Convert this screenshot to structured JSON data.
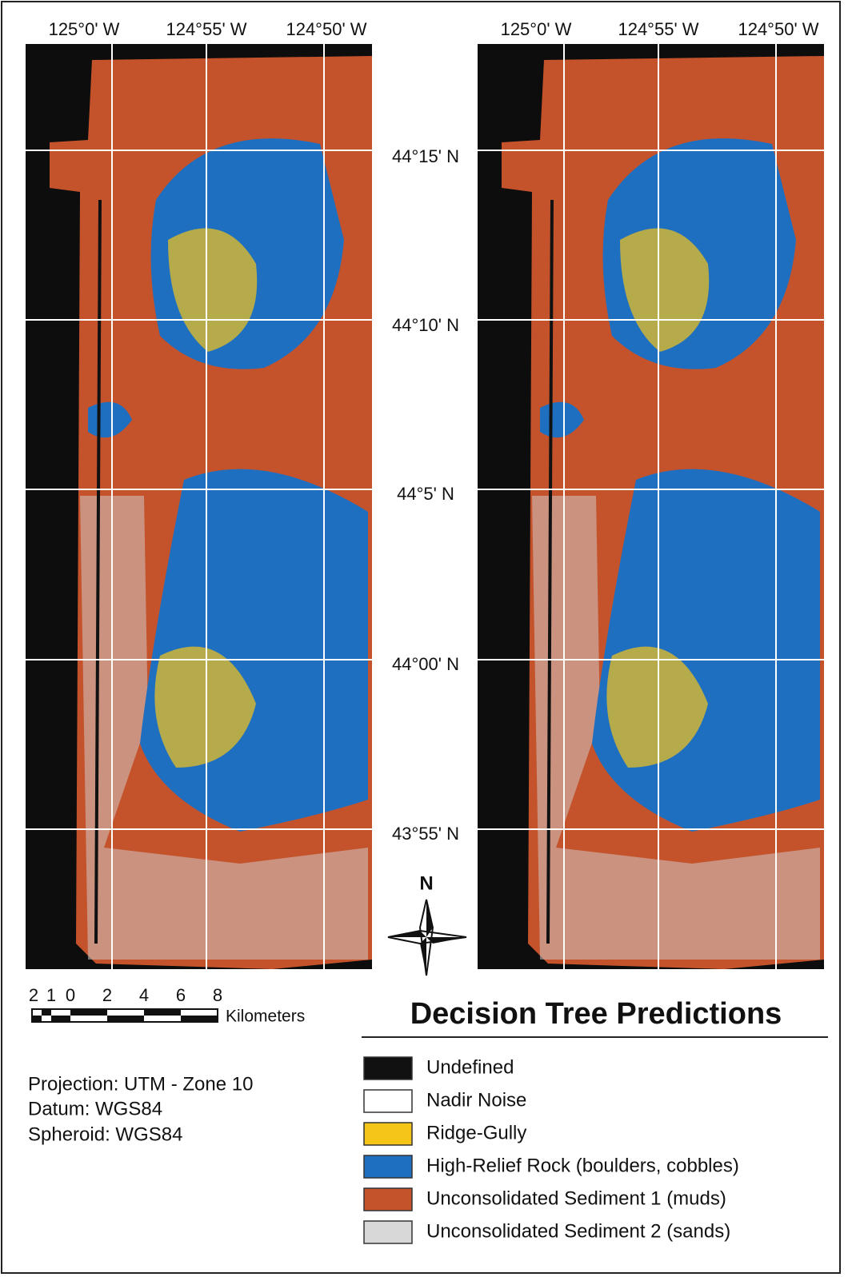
{
  "map": {
    "longitude_labels": [
      "125°0' W",
      "124°55' W",
      "124°50' W"
    ],
    "latitude_labels": [
      "44°15' N",
      "44°10' N",
      "44°5' N",
      "44°00' N",
      "43°55' N"
    ],
    "north_label": "N",
    "scale_labels": [
      "2",
      "1",
      "0",
      "2",
      "4",
      "6",
      "8"
    ],
    "scale_unit": "Kilometers",
    "projection_lines": [
      "Projection: UTM - Zone 10",
      "Datum: WGS84",
      "Spheroid: WGS84"
    ]
  },
  "legend": {
    "title": "Decision Tree Predictions",
    "items": [
      {
        "label": "Undefined",
        "color": "#111111"
      },
      {
        "label": "Nadir Noise",
        "color": "#ffffff"
      },
      {
        "label": "Ridge-Gully",
        "color": "#f5c518"
      },
      {
        "label": "High-Relief Rock (boulders, cobbles)",
        "color": "#1f6fc0"
      },
      {
        "label": "Unconsolidated Sediment 1 (muds)",
        "color": "#c4532c"
      },
      {
        "label": "Unconsolidated Sediment 2 (sands)",
        "color": "#d8d8d8"
      }
    ]
  }
}
